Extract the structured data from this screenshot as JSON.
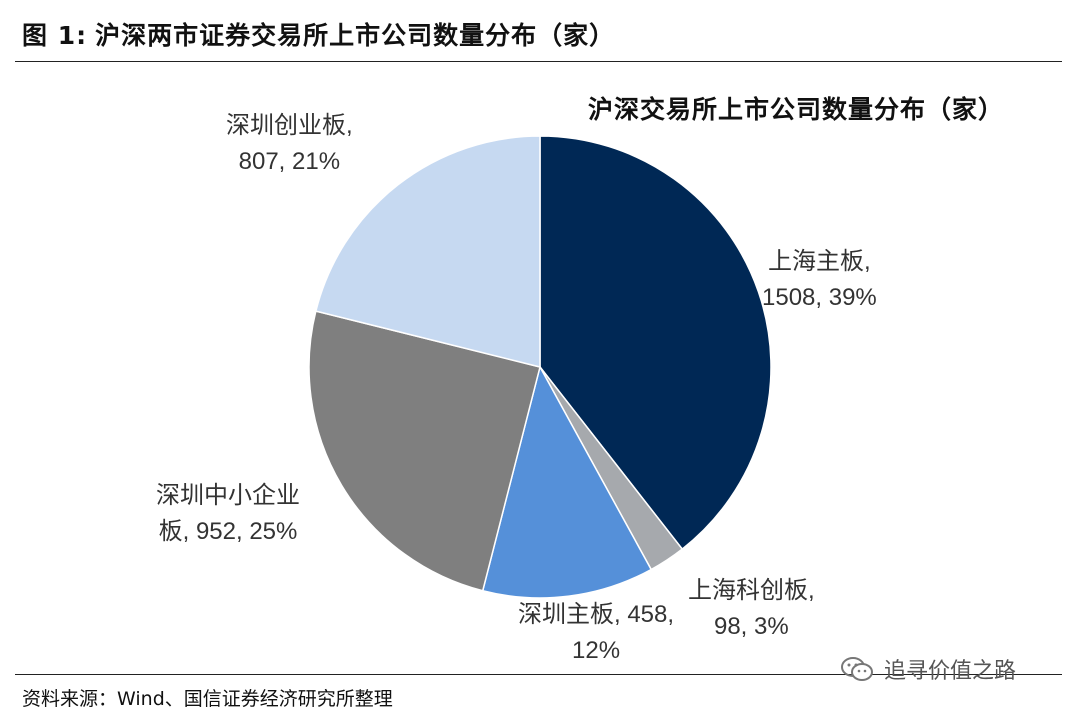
{
  "figure": {
    "number": "图 1:",
    "title": "沪深两市证券交易所上市公司数量分布（家）"
  },
  "chart_data": {
    "type": "pie",
    "title": "沪深交易所上市公司数量分布（家）",
    "slices": [
      {
        "name": "上海主板",
        "value": 1508,
        "percent": "39%",
        "label_line1": "上海主板,",
        "label_line2": "1508, 39%",
        "color": "#002855"
      },
      {
        "name": "上海科创板",
        "value": 98,
        "percent": "3%",
        "label_line1": "上海科创板,",
        "label_line2": "98, 3%",
        "color": "#A6A9AD"
      },
      {
        "name": "深圳主板",
        "value": 458,
        "percent": "12%",
        "label_line1": "深圳主板, 458,",
        "label_line2": "12%",
        "color": "#5590D9"
      },
      {
        "name": "深圳中小企业板",
        "value": 952,
        "percent": "25%",
        "label_line1": "深圳中小企业",
        "label_line2": "板, 952, 25%",
        "color": "#7F7F7F"
      },
      {
        "name": "深圳创业板",
        "value": 807,
        "percent": "21%",
        "label_line1": "深圳创业板,",
        "label_line2": "807, 21%",
        "color": "#C6D9F1"
      }
    ]
  },
  "footer": {
    "source": "资料来源：Wind、国信证券经济研究所整理",
    "watermark": "追寻价值之路",
    "watermark_icon": "wechat-icon"
  }
}
